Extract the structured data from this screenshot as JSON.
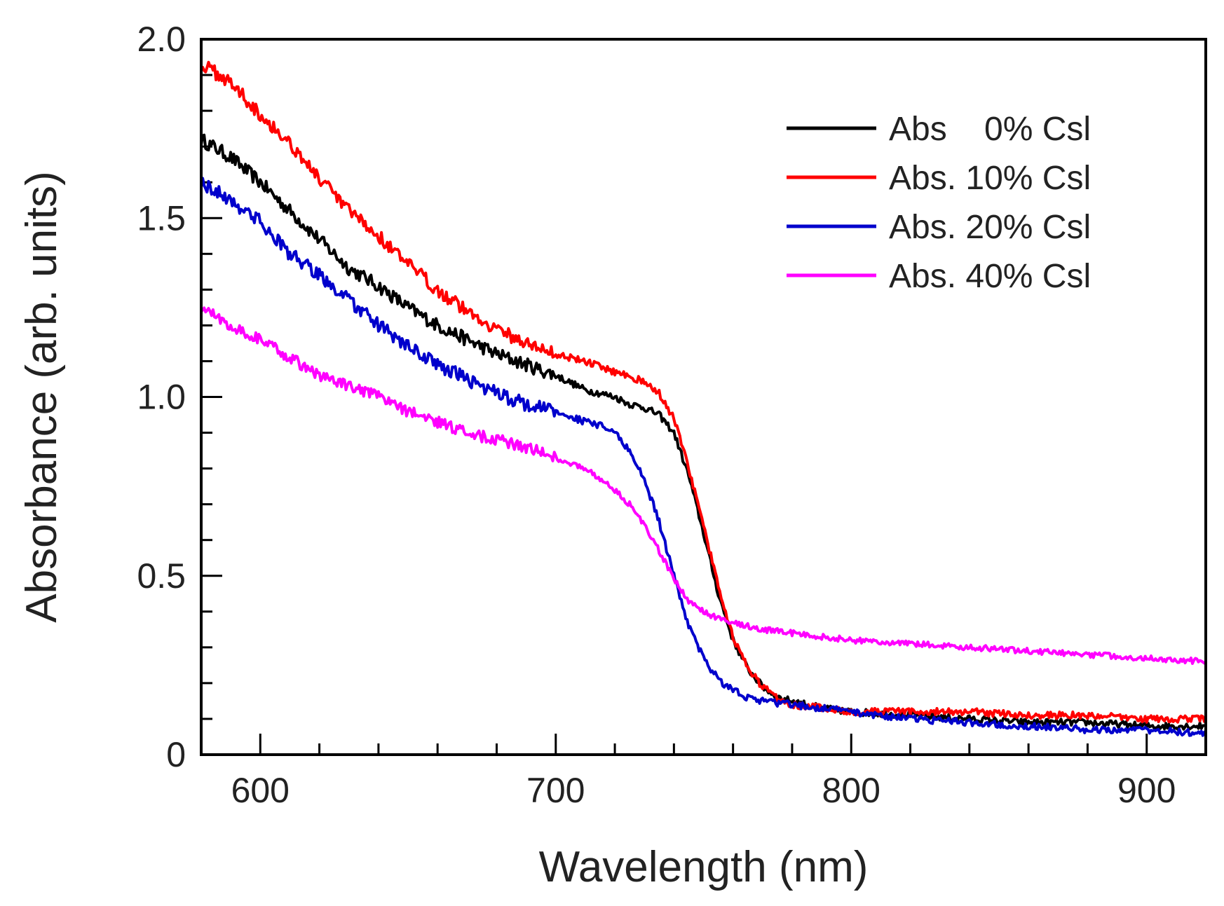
{
  "chart_data": {
    "type": "line",
    "title": "",
    "xlabel": "Wavelength (nm)",
    "ylabel": "Absorbance (arb. units)",
    "xlim": [
      580,
      920
    ],
    "ylim": [
      0,
      2.0
    ],
    "x_ticks": [
      600,
      700,
      800,
      900
    ],
    "x_tick_labels": [
      "600",
      "700",
      "800",
      "900"
    ],
    "x_minor_step": 20,
    "y_ticks": [
      0,
      0.5,
      1.0,
      1.5,
      2.0
    ],
    "y_tick_labels": [
      "0",
      "0.5",
      "1.0",
      "1.5",
      "2.0"
    ],
    "y_minor_step": 0.1,
    "grid": false,
    "legend_position": "top-right",
    "series": [
      {
        "name": "Abs    0% Csl",
        "color": "#000000",
        "noise": 0.012,
        "x": [
          580,
          590,
          600,
          610,
          620,
          630,
          640,
          650,
          660,
          670,
          680,
          690,
          700,
          710,
          720,
          725,
          730,
          735,
          740,
          745,
          750,
          755,
          760,
          765,
          770,
          775,
          780,
          790,
          800,
          820,
          840,
          860,
          880,
          900,
          920
        ],
        "y": [
          1.72,
          1.67,
          1.6,
          1.52,
          1.44,
          1.36,
          1.31,
          1.25,
          1.2,
          1.16,
          1.12,
          1.09,
          1.06,
          1.02,
          1.0,
          0.98,
          0.97,
          0.95,
          0.9,
          0.78,
          0.62,
          0.45,
          0.32,
          0.24,
          0.19,
          0.16,
          0.15,
          0.13,
          0.12,
          0.11,
          0.1,
          0.09,
          0.09,
          0.08,
          0.08
        ]
      },
      {
        "name": "Abs. 10% Csl",
        "color": "#ff0000",
        "noise": 0.012,
        "x": [
          580,
          590,
          600,
          610,
          620,
          630,
          640,
          650,
          660,
          670,
          680,
          690,
          700,
          710,
          720,
          725,
          730,
          735,
          740,
          745,
          750,
          755,
          760,
          765,
          770,
          775,
          780,
          790,
          800,
          820,
          840,
          860,
          880,
          900,
          920
        ],
        "y": [
          1.93,
          1.88,
          1.79,
          1.71,
          1.61,
          1.52,
          1.45,
          1.37,
          1.3,
          1.24,
          1.19,
          1.15,
          1.12,
          1.1,
          1.07,
          1.06,
          1.04,
          1.01,
          0.94,
          0.8,
          0.64,
          0.47,
          0.33,
          0.24,
          0.19,
          0.16,
          0.14,
          0.13,
          0.12,
          0.12,
          0.12,
          0.11,
          0.11,
          0.1,
          0.1
        ]
      },
      {
        "name": "Abs. 20% Csl",
        "color": "#0000cc",
        "noise": 0.012,
        "x": [
          580,
          590,
          600,
          610,
          620,
          630,
          640,
          650,
          660,
          670,
          680,
          690,
          700,
          710,
          715,
          720,
          725,
          730,
          735,
          740,
          745,
          750,
          755,
          760,
          765,
          770,
          780,
          790,
          800,
          820,
          840,
          860,
          880,
          900,
          920
        ],
        "y": [
          1.6,
          1.55,
          1.49,
          1.4,
          1.34,
          1.27,
          1.2,
          1.14,
          1.09,
          1.05,
          1.01,
          0.98,
          0.96,
          0.93,
          0.92,
          0.9,
          0.85,
          0.77,
          0.65,
          0.5,
          0.36,
          0.27,
          0.21,
          0.18,
          0.16,
          0.15,
          0.14,
          0.13,
          0.12,
          0.1,
          0.09,
          0.08,
          0.07,
          0.07,
          0.06
        ]
      },
      {
        "name": "Abs. 40% Csl",
        "color": "#ff00ff",
        "noise": 0.01,
        "x": [
          580,
          590,
          600,
          610,
          620,
          630,
          640,
          650,
          660,
          670,
          680,
          690,
          700,
          710,
          715,
          720,
          725,
          730,
          735,
          740,
          745,
          750,
          755,
          760,
          765,
          770,
          780,
          790,
          800,
          820,
          840,
          860,
          880,
          900,
          920
        ],
        "y": [
          1.25,
          1.2,
          1.16,
          1.11,
          1.06,
          1.03,
          1.0,
          0.96,
          0.93,
          0.9,
          0.88,
          0.86,
          0.83,
          0.8,
          0.77,
          0.74,
          0.7,
          0.64,
          0.57,
          0.49,
          0.43,
          0.4,
          0.38,
          0.37,
          0.36,
          0.35,
          0.34,
          0.33,
          0.32,
          0.31,
          0.3,
          0.29,
          0.28,
          0.27,
          0.26
        ]
      }
    ]
  }
}
